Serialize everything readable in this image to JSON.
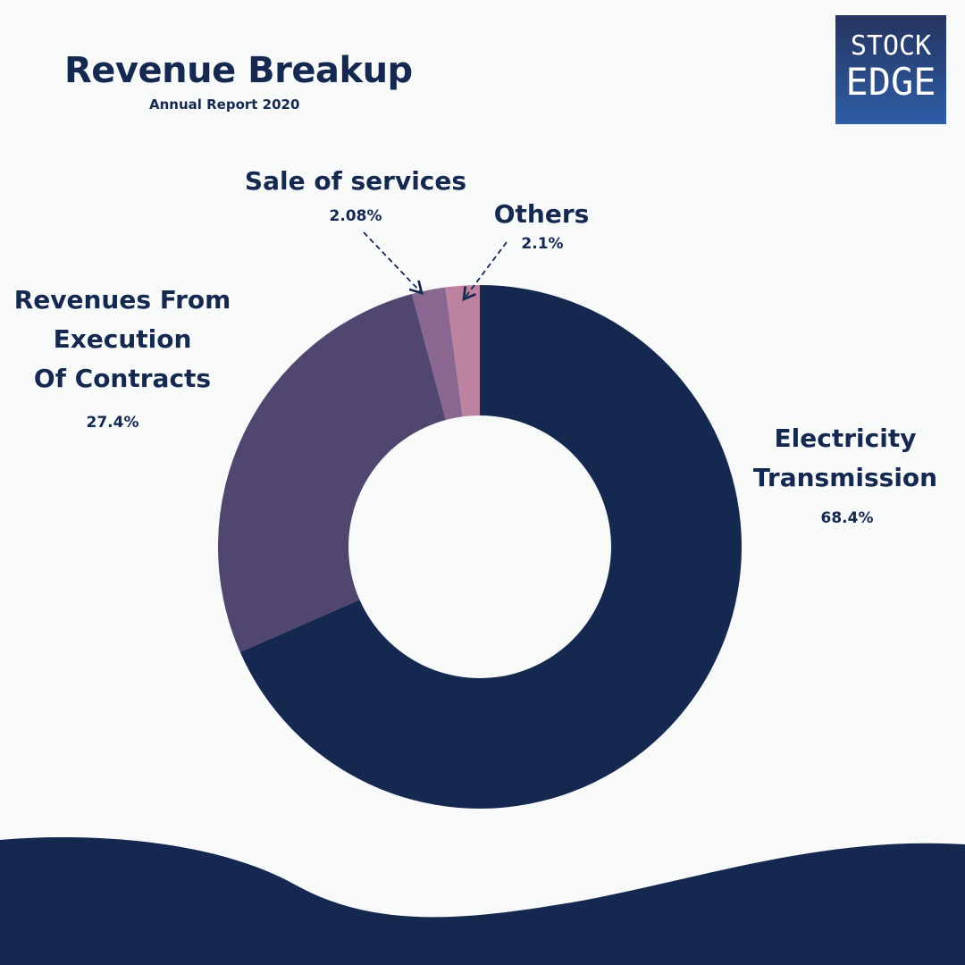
{
  "header": {
    "title": "Revenue Breakup",
    "subtitle": "Annual Report 2020"
  },
  "logo": {
    "text_line1": "STOCK",
    "text_line2": "EDGE"
  },
  "chart_data": {
    "type": "pie",
    "style": "donut",
    "title": "Revenue Breakup",
    "subtitle": "Annual Report 2020",
    "slices": [
      {
        "label": "Electricity Transmission",
        "value": 68.4,
        "display": "68.4%",
        "color": "#152850"
      },
      {
        "label": "Revenues From Execution Of Contracts",
        "value": 27.4,
        "display": "27.4%",
        "color": "#51466f"
      },
      {
        "label": "Sale of services",
        "value": 2.08,
        "display": "2.08%",
        "color": "#8a6790"
      },
      {
        "label": "Others",
        "value": 2.1,
        "display": "2.1%",
        "color": "#bd82a0"
      }
    ],
    "label_lines": {
      "electricity": [
        "Electricity",
        "Transmission"
      ],
      "contracts": [
        "Revenues From",
        "Execution",
        "Of Contracts"
      ]
    },
    "start_angle": "12 o'clock",
    "direction": "clockwise"
  },
  "colors": {
    "background": "#f8fafa",
    "accent": "#152850"
  }
}
